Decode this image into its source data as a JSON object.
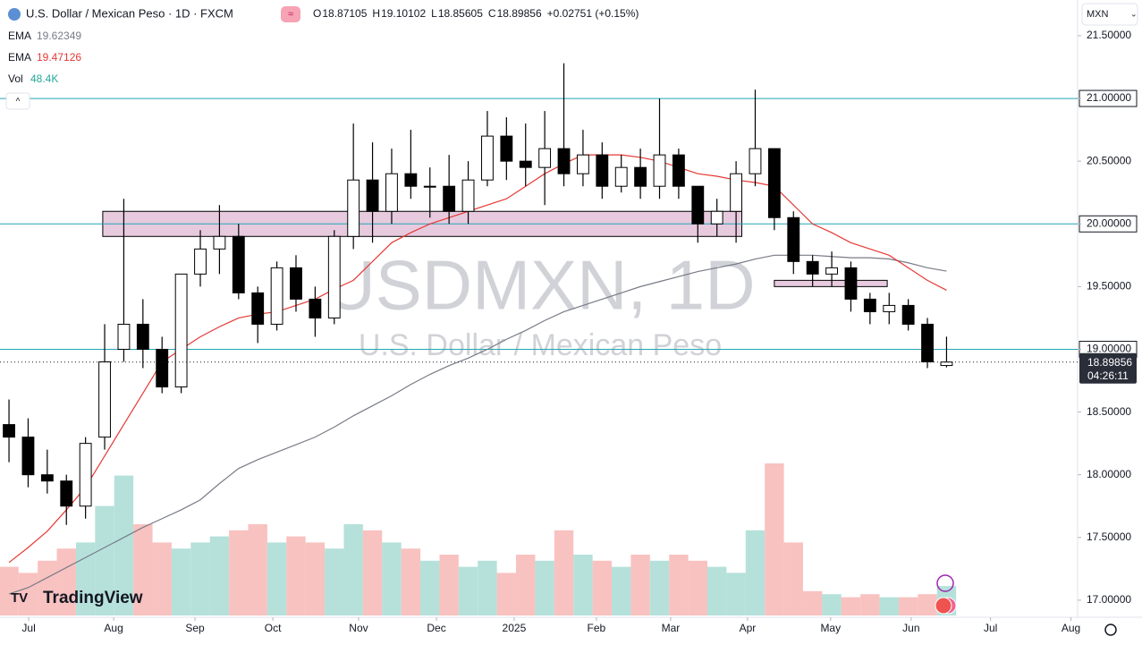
{
  "header": {
    "title": "U.S. Dollar / Mexican Peso · 1D · FXCM",
    "ohlc": [
      {
        "label": "O",
        "value": "18.87105"
      },
      {
        "label": "H",
        "value": "19.10102"
      },
      {
        "label": "L",
        "value": "18.85605"
      },
      {
        "label": "C",
        "value": "18.89856"
      }
    ],
    "change": "+0.02751 (+0.15%)",
    "indicators": [
      {
        "label": "EMA",
        "value": "19.62349",
        "color": "#787b86"
      },
      {
        "label": "EMA",
        "value": "19.47126",
        "color": "#e53935"
      },
      {
        "label": "Vol",
        "value": "48.4K",
        "color": "#26a69a"
      }
    ],
    "currency": "MXN",
    "logo": "TradingView"
  },
  "chart_data": {
    "type": "candlestick",
    "watermark": "USDMXN, 1D",
    "watermark_sub": "U.S. Dollar / Mexican Peso",
    "x": [
      0,
      1,
      2,
      3,
      4,
      5,
      6,
      7,
      8,
      9,
      10,
      11,
      12,
      13,
      14,
      15,
      16,
      17,
      18,
      19,
      20,
      21,
      22,
      23,
      24,
      25,
      26,
      27,
      28,
      29,
      30,
      31,
      32,
      33,
      34,
      35,
      36,
      37,
      38,
      39,
      40,
      41,
      42,
      43,
      44,
      45,
      46,
      47,
      48,
      49
    ],
    "open": [
      18.4,
      18.3,
      18.0,
      17.95,
      17.75,
      18.3,
      19.0,
      19.2,
      19.0,
      18.7,
      19.6,
      19.8,
      19.9,
      19.45,
      19.2,
      19.65,
      19.4,
      19.25,
      19.9,
      20.35,
      20.1,
      20.4,
      20.3,
      20.3,
      20.1,
      20.35,
      20.7,
      20.5,
      20.45,
      20.6,
      20.4,
      20.55,
      20.3,
      20.45,
      20.3,
      20.55,
      20.3,
      20.0,
      20.1,
      20.4,
      20.6,
      20.05,
      19.7,
      19.6,
      19.65,
      19.4,
      19.3,
      19.35,
      19.2,
      18.87105
    ],
    "high": [
      18.6,
      18.45,
      18.2,
      18.0,
      18.3,
      19.2,
      20.2,
      19.4,
      19.1,
      19.6,
      19.95,
      20.15,
      20.0,
      19.5,
      19.7,
      19.75,
      19.5,
      19.95,
      20.8,
      20.65,
      20.6,
      20.75,
      20.45,
      20.55,
      20.5,
      20.9,
      20.85,
      20.8,
      20.9,
      21.28,
      20.75,
      20.65,
      20.55,
      20.6,
      21.0,
      20.6,
      20.3,
      20.2,
      20.5,
      21.07,
      20.6,
      20.1,
      19.75,
      19.78,
      19.7,
      19.45,
      19.45,
      19.4,
      19.25,
      19.10102
    ],
    "low": [
      18.1,
      17.9,
      17.85,
      17.6,
      17.65,
      18.2,
      18.9,
      18.85,
      18.65,
      18.65,
      19.5,
      19.6,
      19.4,
      19.05,
      19.15,
      19.3,
      19.1,
      19.2,
      19.8,
      19.85,
      20.0,
      20.2,
      20.05,
      20.0,
      20.0,
      20.3,
      20.35,
      20.3,
      20.15,
      20.3,
      20.3,
      20.2,
      20.25,
      20.2,
      20.2,
      20.2,
      19.85,
      19.9,
      19.85,
      20.3,
      19.95,
      19.6,
      19.5,
      19.5,
      19.3,
      19.2,
      19.2,
      19.15,
      18.85,
      18.85605
    ],
    "close": [
      18.3,
      18.0,
      17.95,
      17.75,
      18.25,
      18.9,
      19.2,
      19.0,
      18.7,
      19.6,
      19.8,
      19.9,
      19.45,
      19.2,
      19.65,
      19.4,
      19.25,
      19.9,
      20.35,
      20.1,
      20.4,
      20.3,
      20.3,
      20.1,
      20.35,
      20.7,
      20.5,
      20.45,
      20.6,
      20.4,
      20.55,
      20.3,
      20.45,
      20.3,
      20.55,
      20.3,
      20.0,
      20.1,
      20.4,
      20.6,
      20.05,
      19.7,
      19.6,
      19.65,
      19.4,
      19.3,
      19.35,
      19.2,
      18.9,
      18.89856
    ],
    "up_color": "#ffffff",
    "down_color": "#000000",
    "outline": "#000000",
    "volume": [
      80,
      70,
      90,
      110,
      120,
      180,
      230,
      150,
      120,
      110,
      120,
      130,
      140,
      150,
      120,
      130,
      120,
      110,
      150,
      140,
      120,
      110,
      90,
      100,
      80,
      90,
      70,
      100,
      90,
      140,
      100,
      90,
      80,
      100,
      90,
      100,
      90,
      80,
      70,
      140,
      250,
      120,
      40,
      35,
      30,
      35,
      30,
      30,
      35,
      48.4
    ],
    "volume_lim": [
      0,
      250
    ],
    "volume_up_color": "#a8dcd4",
    "volume_down_color": "#f7b7b5",
    "series": [
      {
        "name": "EMA",
        "color": "#787b86",
        "values": [
          17.05,
          17.1,
          17.18,
          17.26,
          17.34,
          17.42,
          17.5,
          17.58,
          17.65,
          17.72,
          17.8,
          17.93,
          18.05,
          18.12,
          18.18,
          18.24,
          18.3,
          18.38,
          18.47,
          18.55,
          18.63,
          18.72,
          18.8,
          18.87,
          18.93,
          19.0,
          19.08,
          19.15,
          19.23,
          19.3,
          19.35,
          19.4,
          19.45,
          19.5,
          19.54,
          19.58,
          19.62,
          19.65,
          19.68,
          19.72,
          19.75,
          19.75,
          19.75,
          19.74,
          19.73,
          19.73,
          19.72,
          19.69,
          19.65,
          19.62349
        ]
      },
      {
        "name": "EMA",
        "color": "#e53935",
        "values": [
          17.3,
          17.42,
          17.55,
          17.72,
          17.9,
          18.15,
          18.4,
          18.65,
          18.9,
          19.0,
          19.1,
          19.18,
          19.25,
          19.28,
          19.3,
          19.35,
          19.4,
          19.48,
          19.55,
          19.7,
          19.85,
          19.93,
          20.0,
          20.05,
          20.1,
          20.15,
          20.2,
          20.3,
          20.4,
          20.48,
          20.55,
          20.55,
          20.55,
          20.53,
          20.5,
          20.45,
          20.4,
          20.38,
          20.35,
          20.33,
          20.3,
          20.15,
          20.0,
          19.93,
          19.85,
          19.8,
          19.75,
          19.65,
          19.55,
          19.47126
        ]
      }
    ],
    "levels": [
      {
        "value": 21,
        "label": "21.00000"
      },
      {
        "value": 20,
        "label": "20.00000"
      },
      {
        "value": 19,
        "label": "19.00000"
      }
    ],
    "level_color": "#22a6b3",
    "zones": [
      {
        "x": [
          4.9,
          38.3
        ],
        "y": [
          19.9,
          20.1
        ]
      },
      {
        "x": [
          40.0,
          45.9
        ],
        "y": [
          19.5,
          19.55
        ]
      }
    ],
    "last_price": 18.89856,
    "countdown": "04:26:11",
    "xlim": [
      -0.47,
      55.85
    ],
    "ylim": [
      16.878,
      21.785
    ],
    "xticks": [
      {
        "value": 1.03,
        "label": "Jul"
      },
      {
        "value": 5.47,
        "label": "Aug"
      },
      {
        "value": 9.72,
        "label": "Sep"
      },
      {
        "value": 13.79,
        "label": "Oct"
      },
      {
        "value": 18.27,
        "label": "Nov"
      },
      {
        "value": 22.34,
        "label": "Dec"
      },
      {
        "value": 26.4,
        "label": "2025"
      },
      {
        "value": 30.7,
        "label": "Feb"
      },
      {
        "value": 34.58,
        "label": "Mar"
      },
      {
        "value": 38.6,
        "label": "Apr"
      },
      {
        "value": 42.94,
        "label": "May"
      },
      {
        "value": 47.15,
        "label": "Jun"
      },
      {
        "value": 51.3,
        "label": "Jul"
      },
      {
        "value": 55.5,
        "label": "Aug"
      }
    ],
    "yticks": [
      {
        "value": 21.5,
        "label": "21.50000"
      },
      {
        "value": 21,
        "label": "21.00000"
      },
      {
        "value": 20.5,
        "label": "20.50000"
      },
      {
        "value": 20,
        "label": "20.00000"
      },
      {
        "value": 19.5,
        "label": "19.50000"
      },
      {
        "value": 19,
        "label": "19.00000"
      },
      {
        "value": 18.5,
        "label": "18.50000"
      },
      {
        "value": 18,
        "label": "18.00000"
      },
      {
        "value": 17.5,
        "label": "17.50000"
      },
      {
        "value": 17,
        "label": "17.00000"
      }
    ]
  }
}
